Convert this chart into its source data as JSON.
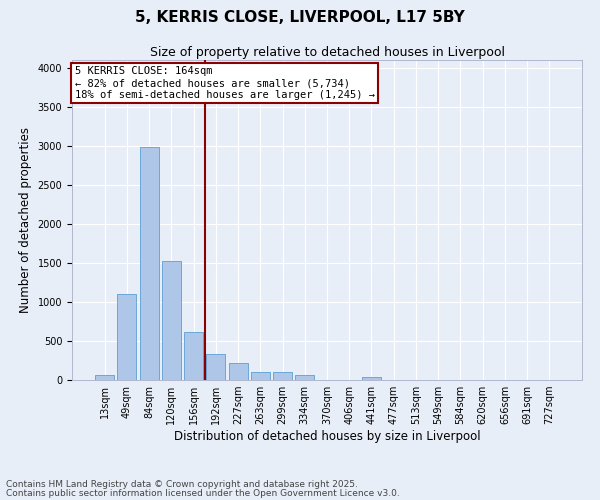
{
  "title_line1": "5, KERRIS CLOSE, LIVERPOOL, L17 5BY",
  "title_line2": "Size of property relative to detached houses in Liverpool",
  "xlabel": "Distribution of detached houses by size in Liverpool",
  "ylabel": "Number of detached properties",
  "categories": [
    "13sqm",
    "49sqm",
    "84sqm",
    "120sqm",
    "156sqm",
    "192sqm",
    "227sqm",
    "263sqm",
    "299sqm",
    "334sqm",
    "370sqm",
    "406sqm",
    "441sqm",
    "477sqm",
    "513sqm",
    "549sqm",
    "584sqm",
    "620sqm",
    "656sqm",
    "691sqm",
    "727sqm"
  ],
  "values": [
    60,
    1100,
    2980,
    1530,
    620,
    330,
    220,
    100,
    100,
    60,
    0,
    0,
    40,
    0,
    0,
    0,
    0,
    0,
    0,
    0,
    0
  ],
  "bar_color": "#aec6e8",
  "bar_edge_color": "#5a9fd4",
  "vline_x_index": 4.5,
  "vline_color": "#8b0000",
  "annotation_box_text": "5 KERRIS CLOSE: 164sqm\n← 82% of detached houses are smaller (5,734)\n18% of semi-detached houses are larger (1,245) →",
  "annotation_box_color": "#8b0000",
  "annotation_bg": "#ffffff",
  "ylim": [
    0,
    4100
  ],
  "yticks": [
    0,
    500,
    1000,
    1500,
    2000,
    2500,
    3000,
    3500,
    4000
  ],
  "footer_line1": "Contains HM Land Registry data © Crown copyright and database right 2025.",
  "footer_line2": "Contains public sector information licensed under the Open Government Licence v3.0.",
  "bg_color": "#e8eef8",
  "grid_color": "#ffffff",
  "title_fontsize": 11,
  "subtitle_fontsize": 9,
  "axis_label_fontsize": 8.5,
  "tick_fontsize": 7,
  "footer_fontsize": 6.5,
  "annotation_fontsize": 7.5
}
